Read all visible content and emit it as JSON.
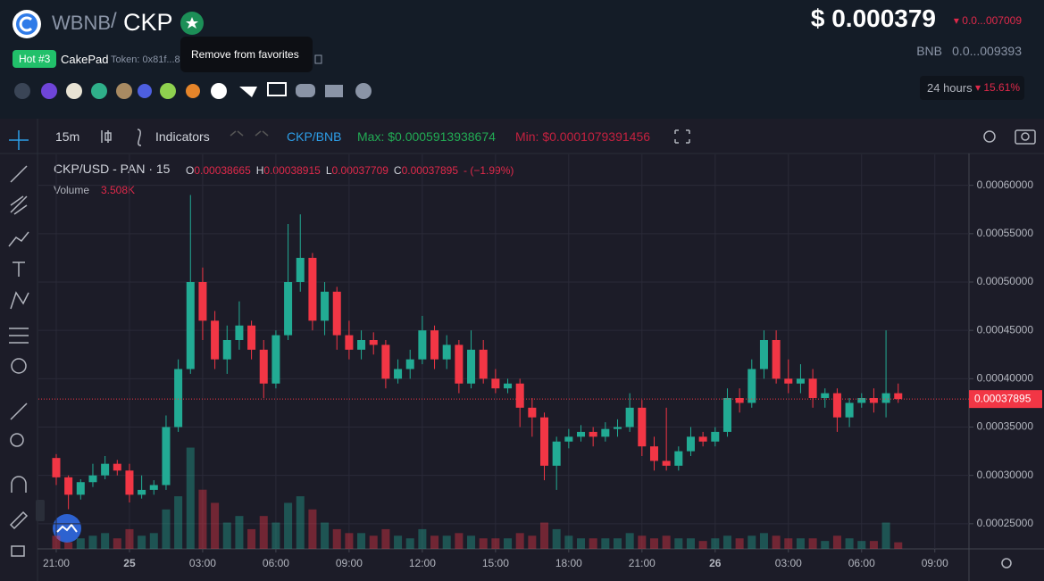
{
  "header": {
    "base": "WBNB",
    "sep": "/",
    "quote": "CKP",
    "tooltip": "Remove from favorites",
    "badge": "Hot #3",
    "source": "CakePad",
    "token": "Token: 0x81f...8",
    "price": "$ 0.000379",
    "price_change": "▾ 0.0...007009",
    "bnb_label": "BNB",
    "bnb_value": "0.0...009393",
    "period": "24 hours",
    "period_change": "▾ 15.61%"
  },
  "toolbar": {
    "interval": "15m",
    "indicators": "Indicators",
    "pair": "CKP/BNB",
    "max": "Max: $0.0005913938674",
    "min": "Min: $0.0001079391456"
  },
  "legend": {
    "symbol": "CKP/USD - PAN · 15",
    "ohlc": [
      {
        "k": "O",
        "v": "0.00038665"
      },
      {
        "k": "H",
        "v": "0.00038915"
      },
      {
        "k": "L",
        "v": "0.00037709"
      },
      {
        "k": "C",
        "v": "0.00037895"
      }
    ],
    "change": "- (−1.99%)",
    "volume_label": "Volume",
    "volume_value": "3.508K"
  },
  "chart_data": {
    "type": "candlestick",
    "up_color": "#22ab94",
    "down_color": "#f23645",
    "grid": true,
    "ylim": [
      0.000224,
      0.000632
    ],
    "yticks": [
      {
        "value": 0.0006,
        "label": "0.00060000"
      },
      {
        "value": 0.00055,
        "label": "0.00055000"
      },
      {
        "value": 0.0005,
        "label": "0.00050000"
      },
      {
        "value": 0.00045,
        "label": "0.00045000"
      },
      {
        "value": 0.0004,
        "label": "0.00040000"
      },
      {
        "value": 0.00035,
        "label": "0.00035000"
      },
      {
        "value": 0.0003,
        "label": "0.00030000"
      },
      {
        "value": 0.00025,
        "label": "0.00025000"
      }
    ],
    "xlim": [
      -0.95,
      74.8
    ],
    "xticks": [
      {
        "value": 0,
        "label": "21:00"
      },
      {
        "value": 6,
        "label": "25"
      },
      {
        "value": 12,
        "label": "03:00"
      },
      {
        "value": 18,
        "label": "06:00"
      },
      {
        "value": 24,
        "label": "09:00"
      },
      {
        "value": 30,
        "label": "12:00"
      },
      {
        "value": 36,
        "label": "15:00"
      },
      {
        "value": 42,
        "label": "18:00"
      },
      {
        "value": 48,
        "label": "21:00"
      },
      {
        "value": 54,
        "label": "26"
      },
      {
        "value": 60,
        "label": "03:00"
      },
      {
        "value": 66,
        "label": "06:00"
      },
      {
        "value": 72,
        "label": "09:00"
      }
    ],
    "last_price": {
      "value": 0.00037895,
      "label": "0.00037895"
    },
    "candles": [
      [
        0.000318,
        0.000322,
        0.00029,
        0.000298
      ],
      [
        0.000298,
        0.0003,
        0.000265,
        0.00028
      ],
      [
        0.00028,
        0.000296,
        0.000275,
        0.000293
      ],
      [
        0.000293,
        0.000312,
        0.000288,
        0.0003
      ],
      [
        0.0003,
        0.00032,
        0.000296,
        0.000312
      ],
      [
        0.000312,
        0.000316,
        0.0003,
        0.000305
      ],
      [
        0.000305,
        0.000312,
        0.000272,
        0.00028
      ],
      [
        0.00028,
        0.0003,
        0.000276,
        0.000285
      ],
      [
        0.000285,
        0.000295,
        0.00028,
        0.00029
      ],
      [
        0.00029,
        0.000362,
        0.000285,
        0.00035
      ],
      [
        0.00035,
        0.00042,
        0.000345,
        0.00041
      ],
      [
        0.00041,
        0.00059,
        0.000405,
        0.0005
      ],
      [
        0.0005,
        0.000515,
        0.00044,
        0.00046
      ],
      [
        0.00046,
        0.00047,
        0.00041,
        0.00042
      ],
      [
        0.00042,
        0.000455,
        0.000405,
        0.00044
      ],
      [
        0.00044,
        0.00048,
        0.00043,
        0.000455
      ],
      [
        0.000455,
        0.00046,
        0.00042,
        0.00043
      ],
      [
        0.00043,
        0.00044,
        0.00038,
        0.000395
      ],
      [
        0.000395,
        0.00045,
        0.00039,
        0.000445
      ],
      [
        0.000445,
        0.00056,
        0.00044,
        0.0005
      ],
      [
        0.0005,
        0.00057,
        0.00049,
        0.000525
      ],
      [
        0.000525,
        0.00053,
        0.00045,
        0.00046
      ],
      [
        0.00046,
        0.0005,
        0.000445,
        0.00049
      ],
      [
        0.00049,
        0.000495,
        0.00043,
        0.000445
      ],
      [
        0.000445,
        0.00046,
        0.00042,
        0.00043
      ],
      [
        0.00043,
        0.00045,
        0.00042,
        0.00044
      ],
      [
        0.00044,
        0.000448,
        0.000425,
        0.000435
      ],
      [
        0.000435,
        0.00044,
        0.00039,
        0.0004
      ],
      [
        0.0004,
        0.00042,
        0.000395,
        0.00041
      ],
      [
        0.00041,
        0.00043,
        0.0004,
        0.00042
      ],
      [
        0.00042,
        0.000465,
        0.000415,
        0.00045
      ],
      [
        0.00045,
        0.000455,
        0.00041,
        0.00042
      ],
      [
        0.00042,
        0.000445,
        0.00041,
        0.000435
      ],
      [
        0.000435,
        0.00044,
        0.000385,
        0.000395
      ],
      [
        0.000395,
        0.00045,
        0.00039,
        0.00043
      ],
      [
        0.00043,
        0.00044,
        0.000395,
        0.0004
      ],
      [
        0.0004,
        0.00041,
        0.000385,
        0.00039
      ],
      [
        0.00039,
        0.0004,
        0.000385,
        0.000395
      ],
      [
        0.000395,
        0.0004,
        0.00035,
        0.00037
      ],
      [
        0.00037,
        0.00038,
        0.00034,
        0.00036
      ],
      [
        0.00036,
        0.000365,
        0.000295,
        0.00031
      ],
      [
        0.00031,
        0.00034,
        0.000285,
        0.000335
      ],
      [
        0.000335,
        0.000348,
        0.000328,
        0.00034
      ],
      [
        0.00034,
        0.000352,
        0.000335,
        0.000345
      ],
      [
        0.000345,
        0.00035,
        0.00033,
        0.00034
      ],
      [
        0.00034,
        0.000355,
        0.000335,
        0.000348
      ],
      [
        0.000348,
        0.000358,
        0.00034,
        0.00035
      ],
      [
        0.00035,
        0.000385,
        0.000345,
        0.00037
      ],
      [
        0.00037,
        0.000378,
        0.00032,
        0.00033
      ],
      [
        0.00033,
        0.00034,
        0.000305,
        0.000315
      ],
      [
        0.000315,
        0.00037,
        0.000305,
        0.00031
      ],
      [
        0.00031,
        0.00033,
        0.000305,
        0.000325
      ],
      [
        0.000325,
        0.00035,
        0.00032,
        0.00034
      ],
      [
        0.00034,
        0.000345,
        0.00033,
        0.000335
      ],
      [
        0.000335,
        0.00035,
        0.00033,
        0.000345
      ],
      [
        0.000345,
        0.00039,
        0.00034,
        0.00038
      ],
      [
        0.00038,
        0.00039,
        0.000365,
        0.000375
      ],
      [
        0.000375,
        0.00042,
        0.00037,
        0.00041
      ],
      [
        0.00041,
        0.00045,
        0.0004,
        0.00044
      ],
      [
        0.00044,
        0.00045,
        0.000395,
        0.0004
      ],
      [
        0.0004,
        0.00042,
        0.000385,
        0.000395
      ],
      [
        0.000395,
        0.000415,
        0.000385,
        0.0004
      ],
      [
        0.0004,
        0.00041,
        0.00037,
        0.00038
      ],
      [
        0.00038,
        0.00039,
        0.00037,
        0.000385
      ],
      [
        0.000385,
        0.00039,
        0.000345,
        0.00036
      ],
      [
        0.00036,
        0.00038,
        0.00035,
        0.000375
      ],
      [
        0.000375,
        0.000385,
        0.00037,
        0.00038
      ],
      [
        0.00038,
        0.00039,
        0.000365,
        0.000375
      ],
      [
        0.000375,
        0.00045,
        0.00036,
        0.000385
      ],
      [
        0.000385,
        0.000395,
        0.000375,
        0.00037895
      ]
    ],
    "vlim": [
      0,
      300
    ],
    "volumes": [
      10,
      5,
      8,
      10,
      12,
      8,
      15,
      10,
      12,
      30,
      40,
      77,
      45,
      35,
      20,
      25,
      15,
      25,
      20,
      35,
      40,
      30,
      20,
      15,
      12,
      12,
      10,
      15,
      10,
      8,
      15,
      10,
      10,
      12,
      10,
      8,
      8,
      8,
      12,
      10,
      20,
      15,
      10,
      8,
      8,
      8,
      8,
      12,
      10,
      8,
      10,
      8,
      8,
      6,
      8,
      10,
      8,
      10,
      12,
      10,
      8,
      8,
      8,
      6,
      10,
      8,
      6,
      6,
      20,
      5
    ]
  }
}
